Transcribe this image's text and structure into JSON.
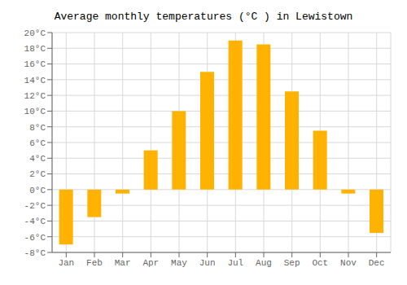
{
  "chart_data": {
    "type": "bar",
    "title": "Average monthly temperatures (°C ) in Lewistown",
    "categories": [
      "Jan",
      "Feb",
      "Mar",
      "Apr",
      "May",
      "Jun",
      "Jul",
      "Aug",
      "Sep",
      "Oct",
      "Nov",
      "Dec"
    ],
    "values": [
      -7.0,
      -3.5,
      -0.5,
      5.0,
      10.0,
      15.0,
      19.0,
      18.5,
      12.5,
      7.5,
      -0.5,
      -5.5
    ],
    "color": "#FFB300",
    "ylim": [
      -8,
      20
    ],
    "yticks": [
      {
        "value": -8,
        "label": "-8°C"
      },
      {
        "value": -6,
        "label": "-6°C"
      },
      {
        "value": -4,
        "label": "-4°C"
      },
      {
        "value": -2,
        "label": "-2°C"
      },
      {
        "value": 0,
        "label": "0°C"
      },
      {
        "value": 2,
        "label": "2°C"
      },
      {
        "value": 4,
        "label": "4°C"
      },
      {
        "value": 6,
        "label": "6°C"
      },
      {
        "value": 8,
        "label": "8°C"
      },
      {
        "value": 10,
        "label": "10°C"
      },
      {
        "value": 12,
        "label": "12°C"
      },
      {
        "value": 14,
        "label": "14°C"
      },
      {
        "value": 16,
        "label": "16°C"
      },
      {
        "value": 18,
        "label": "18°C"
      },
      {
        "value": 20,
        "label": "20°C"
      }
    ],
    "grid": true
  }
}
